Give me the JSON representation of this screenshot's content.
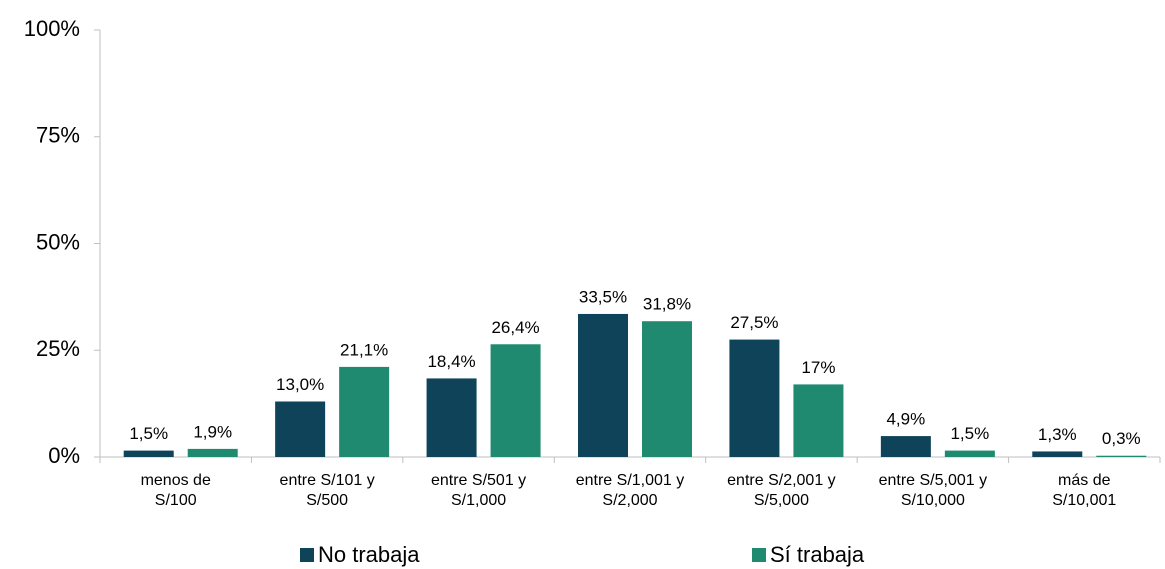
{
  "chart_data": {
    "type": "bar",
    "categories": [
      "menos de\nS/100",
      "entre S/101 y\nS/500",
      "entre S/501 y\nS/1,000",
      "entre S/1,001 y\nS/2,000",
      "entre S/2,001 y\nS/5,000",
      "entre S/5,001 y\nS/10,000",
      "más de\nS/10,001"
    ],
    "series": [
      {
        "name": "No trabaja",
        "color": "#0e4359",
        "values": [
          1.5,
          13.0,
          18.4,
          33.5,
          27.5,
          4.9,
          1.3
        ],
        "value_labels": [
          "1,5%",
          "13,0%",
          "18,4%",
          "33,5%",
          "27,5%",
          "4,9%",
          "1,3%"
        ]
      },
      {
        "name": "Sí trabaja",
        "color": "#1f8a6f",
        "values": [
          1.9,
          21.1,
          26.4,
          31.8,
          17,
          1.5,
          0.3
        ],
        "value_labels": [
          "1,9%",
          "21,1%",
          "26,4%",
          "31,8%",
          "17%",
          "1,5%",
          "0,3%"
        ]
      }
    ],
    "ylim": [
      0,
      100
    ],
    "yticks": [
      {
        "value": 0,
        "label": "0%"
      },
      {
        "value": 25,
        "label": "25%"
      },
      {
        "value": 50,
        "label": "50%"
      },
      {
        "value": 75,
        "label": "75%"
      },
      {
        "value": 100,
        "label": "100%"
      }
    ],
    "grid": false,
    "legend": "bottom"
  }
}
